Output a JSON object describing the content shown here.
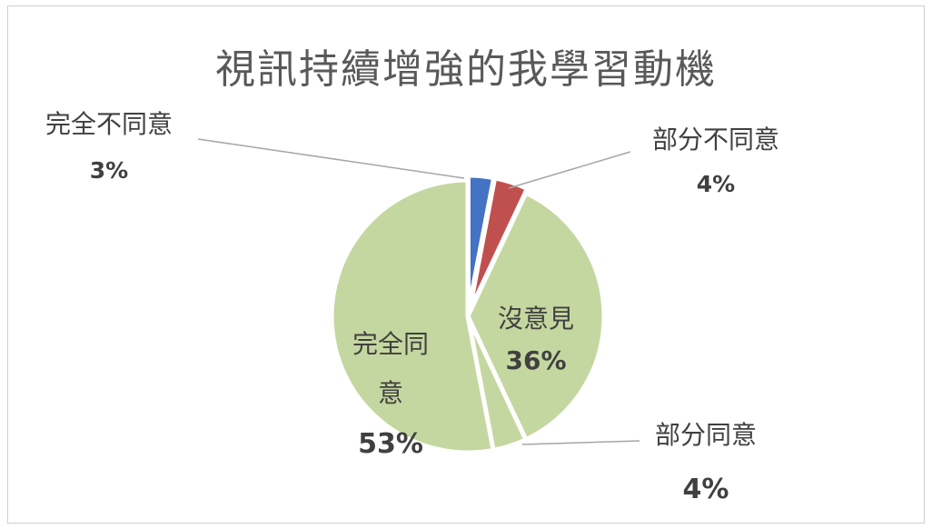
{
  "chart_data": {
    "type": "pie",
    "title": "視訊持續增強的我學習動機",
    "slices": [
      {
        "label": "完全不同意",
        "value": 3,
        "value_label": "3%",
        "color": "#4472C4"
      },
      {
        "label": "部分不同意",
        "value": 4,
        "value_label": "4%",
        "color": "#C0504D"
      },
      {
        "label": "沒意見",
        "value": 36,
        "value_label": "36%",
        "color": "#C5D7A0"
      },
      {
        "label": "部分同意",
        "value": 4,
        "value_label": "4%",
        "color": "#C5D7A0"
      },
      {
        "label": "完全同意",
        "value": 53,
        "value_label": "53%",
        "color": "#C5D7A0"
      }
    ],
    "legend": "none",
    "data_labels": "category and percentage"
  }
}
